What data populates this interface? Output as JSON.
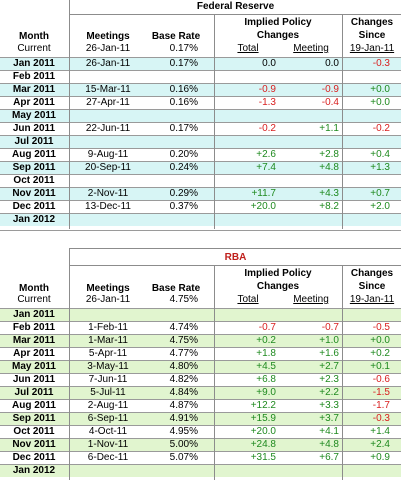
{
  "colors": {
    "fed_band": "#d7f5f5",
    "rba_band": "#e1f5cf",
    "title": "#000000",
    "negative": "#d92020",
    "positive": "#1f8a1f",
    "rba_title": "#c0201c"
  },
  "fed": {
    "title": "Federal Reserve",
    "headers": {
      "month": "Month",
      "meetings": "Meetings",
      "base_rate": "Base Rate",
      "implied_line1": "Implied Policy",
      "implied_line2": "Changes",
      "changes_line1": "Changes",
      "changes_line2": "Since",
      "total": "Total",
      "meeting": "Meeting"
    },
    "current": {
      "label": "Current",
      "date": "26-Jan-11",
      "rate": "0.17%",
      "since": "19-Jan-11"
    },
    "rows": [
      {
        "month": "Jan 2011",
        "meeting": "26-Jan-11",
        "rate": "0.17%",
        "total": "0.0",
        "mtg": "0.0",
        "chg": "-0.3",
        "band": true
      },
      {
        "month": "Feb 2011",
        "meeting": "",
        "rate": "",
        "total": "",
        "mtg": "",
        "chg": "",
        "band": false
      },
      {
        "month": "Mar 2011",
        "meeting": "15-Mar-11",
        "rate": "0.16%",
        "total": "-0.9",
        "mtg": "-0.9",
        "chg": "+0.0",
        "band": true
      },
      {
        "month": "Apr 2011",
        "meeting": "27-Apr-11",
        "rate": "0.16%",
        "total": "-1.3",
        "mtg": "-0.4",
        "chg": "+0.0",
        "band": false
      },
      {
        "month": "May 2011",
        "meeting": "",
        "rate": "",
        "total": "",
        "mtg": "",
        "chg": "",
        "band": true
      },
      {
        "month": "Jun 2011",
        "meeting": "22-Jun-11",
        "rate": "0.17%",
        "total": "-0.2",
        "mtg": "+1.1",
        "chg": "-0.2",
        "band": false
      },
      {
        "month": "Jul 2011",
        "meeting": "",
        "rate": "",
        "total": "",
        "mtg": "",
        "chg": "",
        "band": true
      },
      {
        "month": "Aug 2011",
        "meeting": "9-Aug-11",
        "rate": "0.20%",
        "total": "+2.6",
        "mtg": "+2.8",
        "chg": "+0.4",
        "band": false
      },
      {
        "month": "Sep 2011",
        "meeting": "20-Sep-11",
        "rate": "0.24%",
        "total": "+7.4",
        "mtg": "+4.8",
        "chg": "+1.3",
        "band": true
      },
      {
        "month": "Oct 2011",
        "meeting": "",
        "rate": "",
        "total": "",
        "mtg": "",
        "chg": "",
        "band": false
      },
      {
        "month": "Nov 2011",
        "meeting": "2-Nov-11",
        "rate": "0.29%",
        "total": "+11.7",
        "mtg": "+4.3",
        "chg": "+0.7",
        "band": true
      },
      {
        "month": "Dec 2011",
        "meeting": "13-Dec-11",
        "rate": "0.37%",
        "total": "+20.0",
        "mtg": "+8.2",
        "chg": "+2.0",
        "band": false
      },
      {
        "month": "Jan 2012",
        "meeting": "",
        "rate": "",
        "total": "",
        "mtg": "",
        "chg": "",
        "band": true
      }
    ]
  },
  "rba": {
    "title": "RBA",
    "headers": {
      "month": "Month",
      "meetings": "Meetings",
      "base_rate": "Base Rate",
      "implied_line1": "Implied Policy",
      "implied_line2": "Changes",
      "changes_line1": "Changes",
      "changes_line2": "Since",
      "total": "Total",
      "meeting": "Meeting"
    },
    "current": {
      "label": "Current",
      "date": "26-Jan-11",
      "rate": "4.75%",
      "since": "19-Jan-11"
    },
    "rows": [
      {
        "month": "Jan 2011",
        "meeting": "",
        "rate": "",
        "total": "",
        "mtg": "",
        "chg": "",
        "band": true
      },
      {
        "month": "Feb 2011",
        "meeting": "1-Feb-11",
        "rate": "4.74%",
        "total": "-0.7",
        "mtg": "-0.7",
        "chg": "-0.5",
        "band": false
      },
      {
        "month": "Mar 2011",
        "meeting": "1-Mar-11",
        "rate": "4.75%",
        "total": "+0.2",
        "mtg": "+1.0",
        "chg": "+0.0",
        "band": true
      },
      {
        "month": "Apr 2011",
        "meeting": "5-Apr-11",
        "rate": "4.77%",
        "total": "+1.8",
        "mtg": "+1.6",
        "chg": "+0.2",
        "band": false
      },
      {
        "month": "May 2011",
        "meeting": "3-May-11",
        "rate": "4.80%",
        "total": "+4.5",
        "mtg": "+2.7",
        "chg": "+0.1",
        "band": true
      },
      {
        "month": "Jun 2011",
        "meeting": "7-Jun-11",
        "rate": "4.82%",
        "total": "+6.8",
        "mtg": "+2.3",
        "chg": "-0.6",
        "band": false
      },
      {
        "month": "Jul 2011",
        "meeting": "5-Jul-11",
        "rate": "4.84%",
        "total": "+9.0",
        "mtg": "+2.2",
        "chg": "-1.5",
        "band": true
      },
      {
        "month": "Aug 2011",
        "meeting": "2-Aug-11",
        "rate": "4.87%",
        "total": "+12.2",
        "mtg": "+3.3",
        "chg": "-1.7",
        "band": false
      },
      {
        "month": "Sep 2011",
        "meeting": "6-Sep-11",
        "rate": "4.91%",
        "total": "+15.9",
        "mtg": "+3.7",
        "chg": "-0.3",
        "band": true
      },
      {
        "month": "Oct 2011",
        "meeting": "4-Oct-11",
        "rate": "4.95%",
        "total": "+20.0",
        "mtg": "+4.1",
        "chg": "+1.4",
        "band": false
      },
      {
        "month": "Nov 2011",
        "meeting": "1-Nov-11",
        "rate": "5.00%",
        "total": "+24.8",
        "mtg": "+4.8",
        "chg": "+2.4",
        "band": true
      },
      {
        "month": "Dec 2011",
        "meeting": "6-Dec-11",
        "rate": "5.07%",
        "total": "+31.5",
        "mtg": "+6.7",
        "chg": "+0.9",
        "band": false
      },
      {
        "month": "Jan 2012",
        "meeting": "",
        "rate": "",
        "total": "",
        "mtg": "",
        "chg": "",
        "band": true
      }
    ]
  }
}
